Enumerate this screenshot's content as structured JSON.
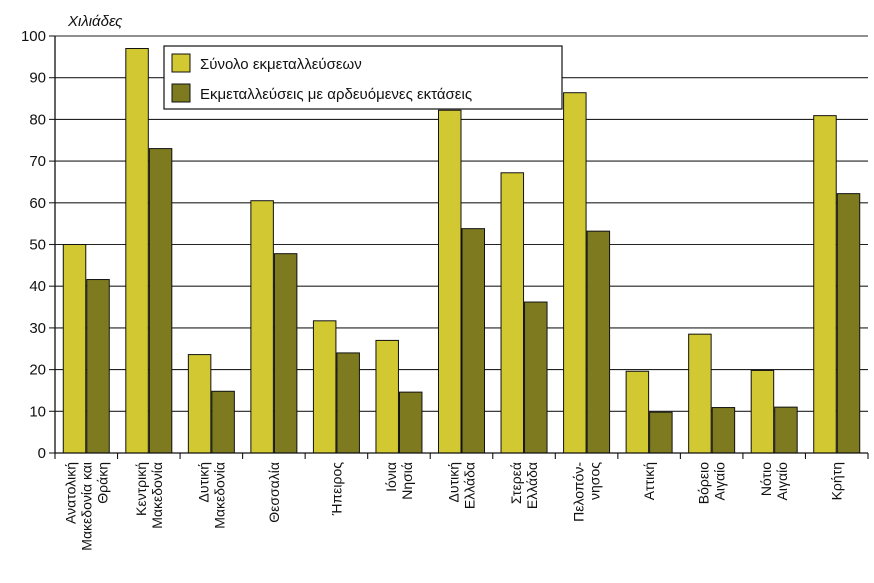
{
  "chart_data": {
    "type": "bar",
    "unit_label": "Χιλιάδες",
    "ylim": [
      0,
      100
    ],
    "yticks": [
      0,
      10,
      20,
      30,
      40,
      50,
      60,
      70,
      80,
      90,
      100
    ],
    "grid": true,
    "legend_position": "top-left",
    "categories": [
      [
        "Ανατολική",
        "Μακεδονία και",
        "Θράκη"
      ],
      [
        "Κεντρική",
        "Μακεδονία"
      ],
      [
        "Δυτική",
        "Μακεδονία"
      ],
      [
        "Θεσσαλία"
      ],
      [
        "Ήπειρος"
      ],
      [
        "Ιόνια",
        "Νησιά"
      ],
      [
        "Δυτική",
        "Ελλάδα"
      ],
      [
        "Στερεά",
        "Ελλάδα"
      ],
      [
        "Πελοπόν-",
        "νησος"
      ],
      [
        "Αττική"
      ],
      [
        "Βόρειο",
        "Αιγαίο"
      ],
      [
        "Νότιο",
        "Αιγαίο"
      ],
      [
        "Κρήτη"
      ]
    ],
    "series": [
      {
        "name": "Σύνολο εκμεταλλεύσεων",
        "color": "#d2c831",
        "values": [
          50.0,
          97.0,
          23.6,
          60.5,
          31.7,
          27.0,
          82.2,
          67.2,
          86.4,
          19.6,
          28.5,
          19.8,
          80.9
        ]
      },
      {
        "name": "Εκμεταλλεύσεις με αρδευόμενες εκτάσεις",
        "color": "#7d7a1f",
        "values": [
          41.6,
          73.0,
          14.8,
          47.8,
          24.0,
          14.6,
          53.8,
          36.2,
          53.2,
          9.8,
          10.9,
          11.0,
          62.2
        ]
      }
    ]
  }
}
